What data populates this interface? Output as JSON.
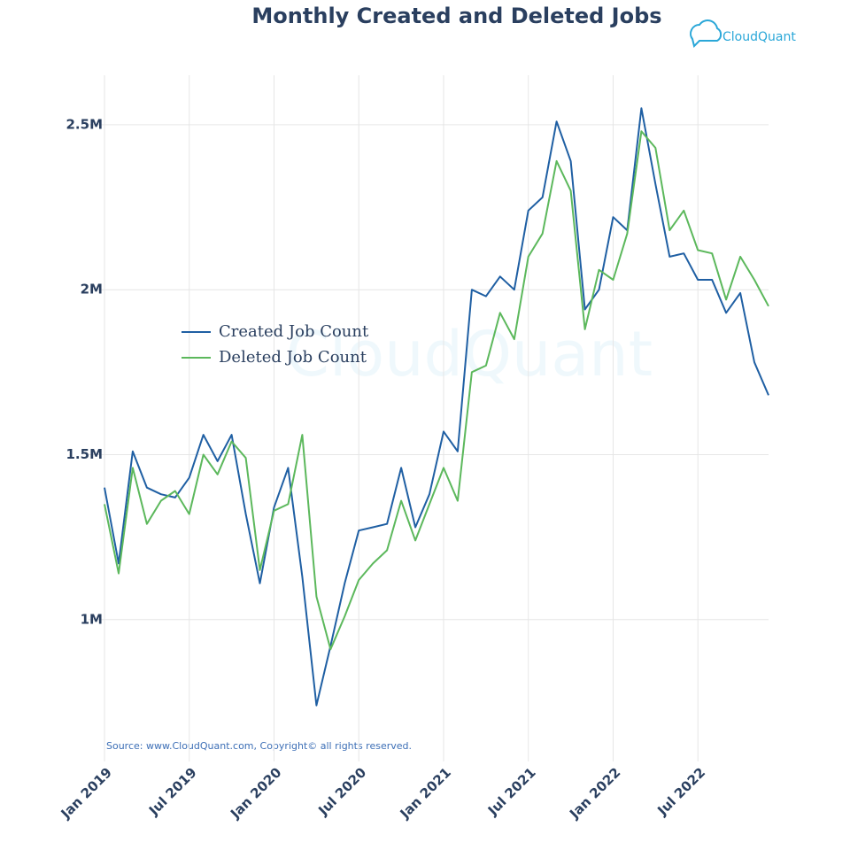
{
  "chart_data": {
    "type": "line",
    "title": "Monthly Created and Deleted Jobs",
    "logo": "CloudQuant",
    "watermark": "CloudQuant",
    "source": "Source: www.CloudQuant.com, Copyright© all rights reserved.",
    "x": [
      "2019-01",
      "2019-02",
      "2019-03",
      "2019-04",
      "2019-05",
      "2019-06",
      "2019-07",
      "2019-08",
      "2019-09",
      "2019-10",
      "2019-11",
      "2019-12",
      "2020-01",
      "2020-02",
      "2020-03",
      "2020-04",
      "2020-05",
      "2020-06",
      "2020-07",
      "2020-08",
      "2020-09",
      "2020-10",
      "2020-11",
      "2020-12",
      "2021-01",
      "2021-02",
      "2021-03",
      "2021-04",
      "2021-05",
      "2021-06",
      "2021-07",
      "2021-08",
      "2021-09",
      "2021-10",
      "2021-11",
      "2021-12",
      "2022-01",
      "2022-02",
      "2022-03",
      "2022-04",
      "2022-05",
      "2022-06",
      "2022-07",
      "2022-08",
      "2022-09",
      "2022-10",
      "2022-11",
      "2022-12"
    ],
    "series": [
      {
        "name": "Created Job Count",
        "color": "#1f5fa3",
        "values": [
          1400000,
          1170000,
          1510000,
          1400000,
          1380000,
          1370000,
          1430000,
          1560000,
          1480000,
          1560000,
          1320000,
          1110000,
          1340000,
          1460000,
          1130000,
          740000,
          920000,
          1110000,
          1270000,
          1280000,
          1290000,
          1460000,
          1280000,
          1380000,
          1570000,
          1510000,
          2000000,
          1980000,
          2040000,
          2000000,
          2240000,
          2280000,
          2510000,
          2390000,
          1940000,
          2000000,
          2220000,
          2180000,
          2550000,
          2320000,
          2100000,
          2110000,
          2030000,
          2030000,
          1930000,
          1990000,
          1780000,
          1680000
        ]
      },
      {
        "name": "Deleted Job Count",
        "color": "#5cb85c",
        "values": [
          1350000,
          1140000,
          1460000,
          1290000,
          1360000,
          1390000,
          1320000,
          1500000,
          1440000,
          1540000,
          1490000,
          1150000,
          1330000,
          1350000,
          1560000,
          1070000,
          910000,
          1010000,
          1120000,
          1170000,
          1210000,
          1360000,
          1240000,
          1350000,
          1460000,
          1360000,
          1750000,
          1770000,
          1930000,
          1850000,
          2100000,
          2170000,
          2390000,
          2300000,
          1880000,
          2060000,
          2030000,
          2170000,
          2480000,
          2430000,
          2180000,
          2240000,
          2120000,
          2110000,
          1970000,
          2100000,
          2030000,
          1950000
        ]
      }
    ],
    "ylim": [
      570000,
      2650000
    ],
    "yticks": [
      {
        "value": 1000000,
        "label": "1M"
      },
      {
        "value": 1500000,
        "label": "1.5M"
      },
      {
        "value": 2000000,
        "label": "2M"
      },
      {
        "value": 2500000,
        "label": "2.5M"
      }
    ],
    "xticks": [
      {
        "value": "2019-01",
        "label": "Jan 2019"
      },
      {
        "value": "2019-07",
        "label": "Jul 2019"
      },
      {
        "value": "2020-01",
        "label": "Jan 2020"
      },
      {
        "value": "2020-07",
        "label": "Jul 2020"
      },
      {
        "value": "2021-01",
        "label": "Jan 2021"
      },
      {
        "value": "2021-07",
        "label": "Jul 2021"
      },
      {
        "value": "2022-01",
        "label": "Jan 2022"
      },
      {
        "value": "2022-07",
        "label": "Jul 2022"
      }
    ],
    "grid": true,
    "legend": "center-left"
  }
}
